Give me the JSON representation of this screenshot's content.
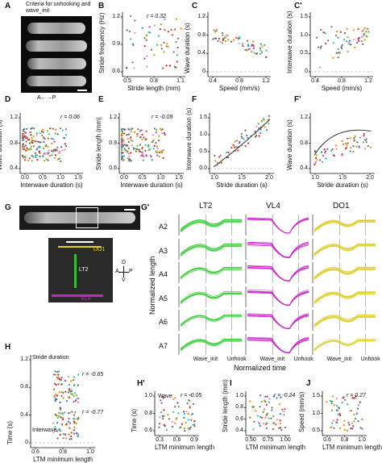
{
  "panels": {
    "A": {
      "letter": "A",
      "caption": "Criteria for unhooking and wave_init",
      "axis_note": "A←→P"
    },
    "B": {
      "letter": "B",
      "r": "r = 0.32",
      "ylabel": "Stride frequency (Hz)",
      "xlabel": "Stride length (mm)",
      "yticks": [
        "1.2",
        "0.9",
        "0.6"
      ],
      "xticks": [
        "0.5",
        "0.8",
        "1.1"
      ]
    },
    "C": {
      "letter": "C",
      "ylabel": "Wave duration (s)",
      "xlabel": "Speed (mm/s)",
      "yticks": [
        "1.2",
        "0.8",
        "0.4",
        "0"
      ],
      "xticks": [
        "0.4",
        "0.8",
        "1.2"
      ]
    },
    "C2": {
      "letter": "C'",
      "ylabel": "Interwave duration (s)",
      "xlabel": "Speed (mm/s)",
      "yticks": [
        "1.5",
        "1.0",
        "0.5",
        "0"
      ],
      "xticks": [
        "0.4",
        "0.8",
        "1.2"
      ]
    },
    "D": {
      "letter": "D",
      "r": "r = 0.06",
      "ylabel": "Wave duration (s)",
      "xlabel": "Interwave duration (s)",
      "yticks": [
        "1.2",
        "0.8",
        "0.4"
      ],
      "xticks": [
        "0.0",
        "0.5",
        "1.0",
        "1.5"
      ]
    },
    "E": {
      "letter": "E",
      "r": "r = -0.09",
      "ylabel": "Stride length (mm)",
      "xlabel": "Interwave duration (s)",
      "yticks": [
        "1.2",
        "0.9",
        "0.6"
      ],
      "xticks": [
        "0.0",
        "0.5",
        "1.0",
        "1.5"
      ]
    },
    "F": {
      "letter": "F",
      "ylabel": "Interwave duration (s)",
      "xlabel": "Stride duration (s)",
      "yticks": [
        "1.5",
        "1.0",
        "0.5",
        "0.0"
      ],
      "xticks": [
        "1.0",
        "1.5",
        "2.0"
      ]
    },
    "F2": {
      "letter": "F'",
      "ylabel": "Wave duration (s)",
      "xlabel": "Stride duration (s)",
      "yticks": [
        "1.2",
        "0.8",
        "0.4"
      ],
      "xticks": [
        "1.0",
        "1.5",
        "2.0"
      ]
    },
    "G": {
      "letter": "G",
      "labels": {
        "do1": "DO1",
        "lt2": "LT2",
        "vl4": "VL4"
      },
      "compass": {
        "d": "D",
        "v": "V",
        "a": "A",
        "p": "P"
      }
    },
    "G2": {
      "letter": "G'",
      "columns": [
        "LT2",
        "VL4",
        "DO1"
      ],
      "rows": [
        "A2",
        "A3",
        "A4",
        "A5",
        "A6",
        "A7"
      ],
      "ylabel": "Normalized length",
      "xlabel": "Normalized time",
      "x_events": [
        "Wave_init",
        "Unhook"
      ]
    },
    "H": {
      "letter": "H",
      "ylabel": "Time (s)",
      "xlabel": "LTM minimum length",
      "yticks": [
        "1.2",
        "0.8",
        "0.4",
        "0"
      ],
      "xticks": [
        "0.6",
        "0.8",
        "1.0"
      ],
      "annotations": [
        {
          "label": "Stride duration",
          "r": "r = -0.65"
        },
        {
          "label": "Interwave",
          "r": "r = -0.77"
        }
      ]
    },
    "H2": {
      "letter": "H'",
      "label": "Wave",
      "r": "r = -0.05",
      "ylabel": "Time (s)",
      "xlabel": "LTM minimum length",
      "yticks": [
        "1.0",
        "0.8",
        "0.6"
      ],
      "xticks": [
        "0.3",
        "0.6",
        "0.9"
      ]
    },
    "I": {
      "letter": "I",
      "r": "r = -0.24",
      "ylabel": "Stride length (mm)",
      "xlabel": "LTM minimum length",
      "yticks": [
        "1.0",
        "0.8",
        "0.6",
        "0.4"
      ],
      "xticks": [
        "0.50",
        "0.75",
        "1.00"
      ]
    },
    "J": {
      "letter": "J",
      "r": "r = 0.27",
      "ylabel": "Speed (mm/s)",
      "xlabel": "LTM minimum length",
      "yticks": [
        "1.5",
        "1.0",
        "0.5"
      ],
      "xticks": [
        "0.6",
        "0.8",
        "1.0"
      ]
    }
  },
  "colors": {
    "lt2": "#33cc33",
    "vl4": "#cc22cc",
    "do1": "#ddcc22",
    "fit": "#333333",
    "palette": [
      "#e41a1c",
      "#377eb8",
      "#4daf4a",
      "#984ea3",
      "#ff7f00",
      "#a6a600",
      "#a65628",
      "#f781bf",
      "#17becf",
      "#666666"
    ]
  }
}
